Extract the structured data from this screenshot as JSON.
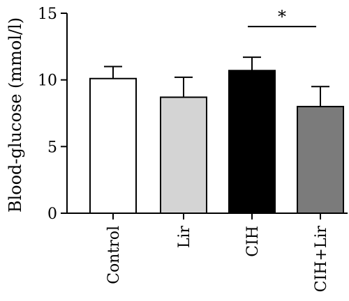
{
  "chart_data": {
    "type": "bar",
    "ylabel": "Blood-glucose (mmol/l)",
    "xlabel": "",
    "categories": [
      "Control",
      "Lir",
      "CIH",
      "CIH+Lir"
    ],
    "values": [
      10.1,
      8.7,
      10.7,
      8.0
    ],
    "errors": [
      0.9,
      1.5,
      1.0,
      1.5
    ],
    "bar_colors": [
      "#ffffff",
      "#d4d4d4",
      "#000000",
      "#7b7b7b"
    ],
    "ylim": [
      0,
      15
    ],
    "yticks": [
      0,
      5,
      10,
      15
    ],
    "grid": false,
    "significance": [
      {
        "from": 2,
        "to": 3,
        "y": 14.0,
        "label": "*"
      }
    ]
  }
}
